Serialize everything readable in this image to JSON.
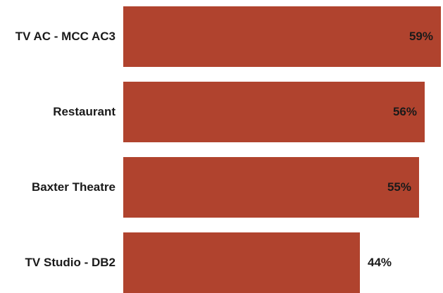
{
  "chart_data": {
    "type": "bar",
    "orientation": "horizontal",
    "title": "",
    "xlabel": "",
    "ylabel": "",
    "categories": [
      "TV AC - MCC AC3",
      "Restaurant",
      "Baxter Theatre",
      "TV Studio - DB2"
    ],
    "values": [
      59,
      56,
      55,
      44
    ],
    "value_labels": [
      "59%",
      "56%",
      "55%",
      "44%"
    ],
    "unit": "%",
    "xlim": [
      0,
      59
    ],
    "grid": false,
    "legend": "none",
    "bar_color": "#b0432e"
  }
}
